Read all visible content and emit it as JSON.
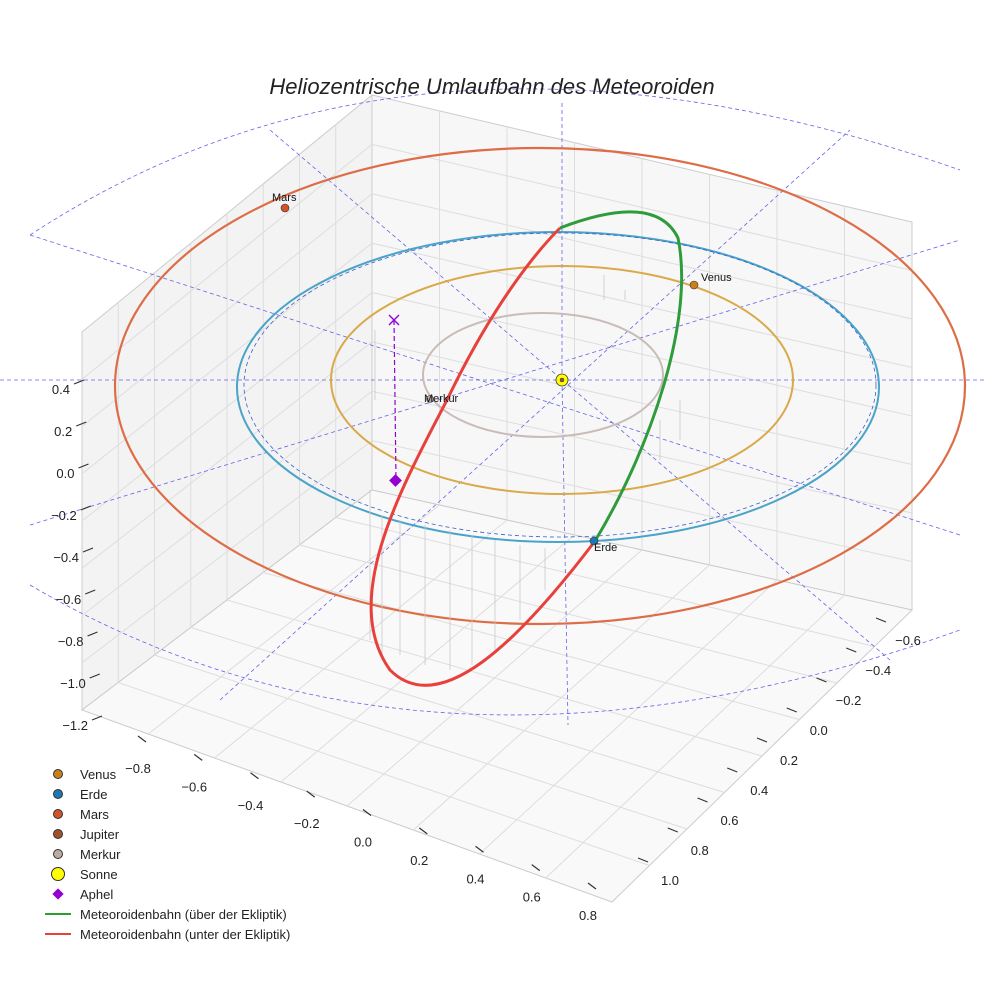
{
  "chart_data": {
    "type": "scatter3d",
    "title": "Heliozentrische Umlaufbahn des Meteoroiden",
    "axes": {
      "x": {
        "ticks": [
          "−0.8",
          "−0.6",
          "−0.4",
          "−0.2",
          "0.0",
          "0.2",
          "0.4",
          "0.6",
          "0.8"
        ]
      },
      "y": {
        "ticks": [
          "−0.6",
          "−0.4",
          "−0.2",
          "0.0",
          "0.2",
          "0.4",
          "0.6",
          "0.8",
          "1.0"
        ]
      },
      "z": {
        "ticks": [
          "0.4",
          "0.2",
          "0.0",
          "−0.2",
          "−0.4",
          "−0.6",
          "−0.8",
          "−1.0",
          "−1.2"
        ]
      }
    },
    "orbits": [
      {
        "name": "Merkur",
        "color": "#c9bcb8"
      },
      {
        "name": "Venus",
        "color": "#d9a94a"
      },
      {
        "name": "Erde",
        "color": "#3a7fc4"
      },
      {
        "name": "Mars",
        "color": "#dd6d46"
      }
    ],
    "point_labels": {
      "mars": "Mars",
      "venus": "Venus",
      "merkur": "Merkur",
      "erde": "Erde"
    },
    "legend": [
      {
        "label": "Venus",
        "symbol": "dot",
        "color": "#c97f1c"
      },
      {
        "label": "Erde",
        "symbol": "dot",
        "color": "#1f77b4"
      },
      {
        "label": "Mars",
        "symbol": "dot",
        "color": "#d4522a"
      },
      {
        "label": "Jupiter",
        "symbol": "dot",
        "color": "#a0522d"
      },
      {
        "label": "Merkur",
        "symbol": "dot",
        "color": "#bfa9a3"
      },
      {
        "label": "Sonne",
        "symbol": "bigdot",
        "color": "#ffff00"
      },
      {
        "label": "Aphel",
        "symbol": "diamond",
        "color": "#9400d3"
      },
      {
        "label": "Meteoroidenbahn (über der Ekliptik)",
        "symbol": "line",
        "color": "#2ca02c"
      },
      {
        "label": "Meteoroidenbahn (unter der Ekliptik)",
        "symbol": "line",
        "color": "#e8413c"
      }
    ]
  }
}
